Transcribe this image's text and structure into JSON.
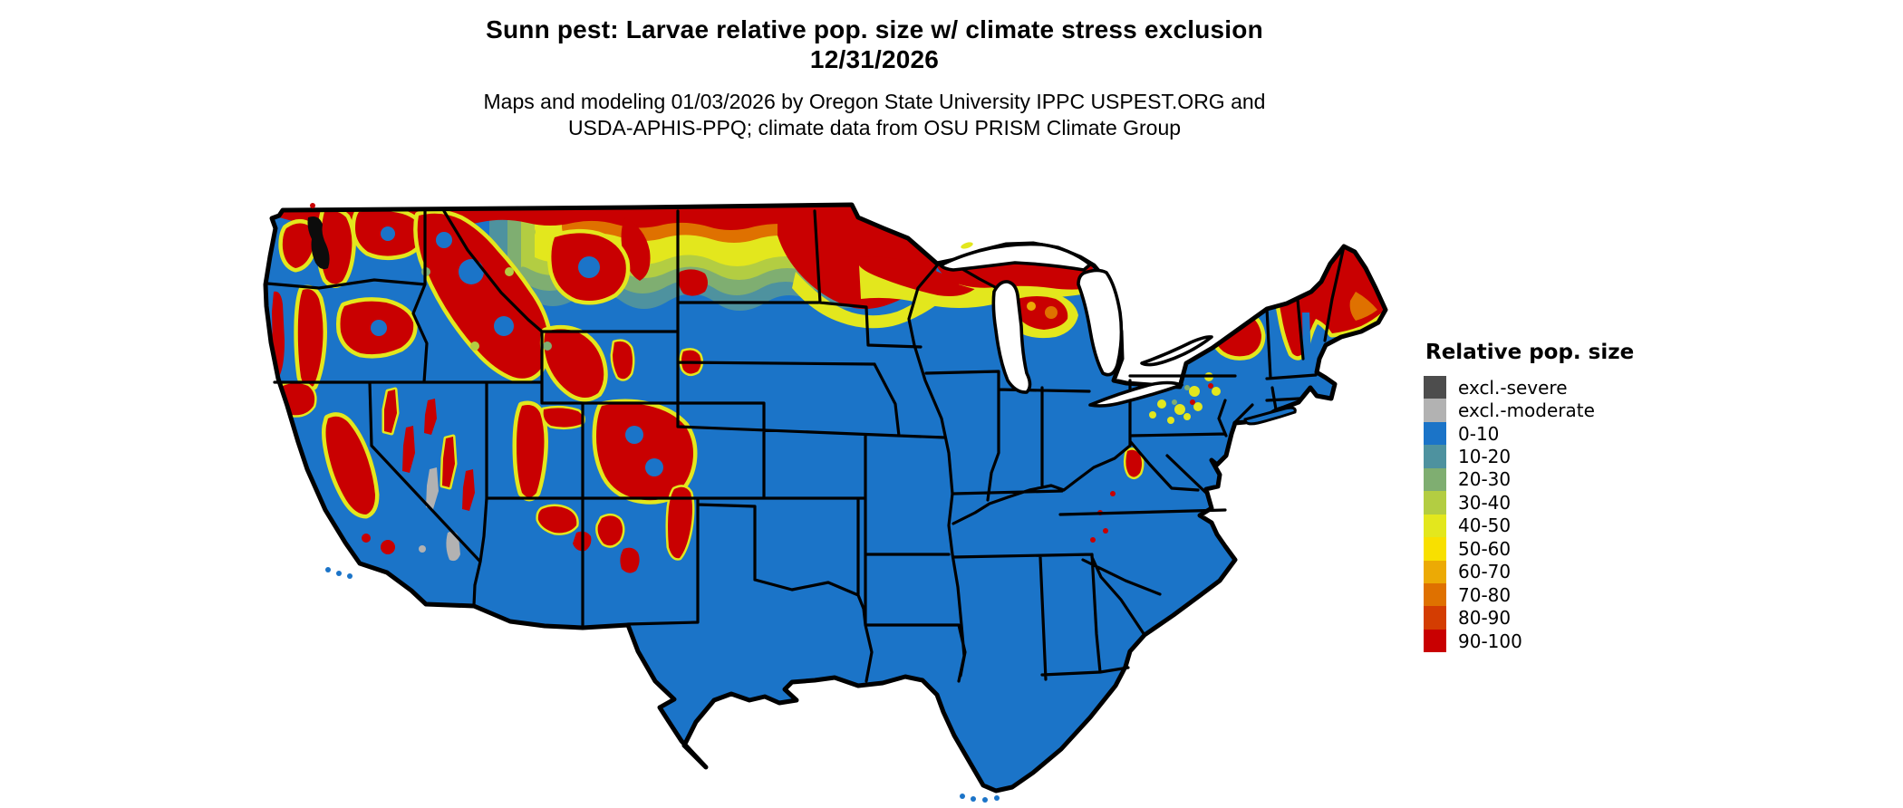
{
  "header": {
    "title_line1": "Sunn pest: Larvae relative pop. size w/ climate stress exclusion",
    "title_line2": "12/31/2026",
    "subtitle_line1": "Maps and modeling 01/03/2026 by Oregon State University IPPC USPEST.ORG and",
    "subtitle_line2": "USDA-APHIS-PPQ; climate data from OSU PRISM Climate Group"
  },
  "map": {
    "region": "Contiguous United States",
    "base_color": "#1b74c8",
    "border_color": "#000000"
  },
  "legend": {
    "title": "Relative pop. size",
    "entries": [
      {
        "label": "excl.-severe",
        "color": "#4d4d4d"
      },
      {
        "label": "excl.-moderate",
        "color": "#b2b2b2"
      },
      {
        "label": "0-10",
        "color": "#1b74c8"
      },
      {
        "label": "10-20",
        "color": "#4e929f"
      },
      {
        "label": "20-30",
        "color": "#7fae71"
      },
      {
        "label": "30-40",
        "color": "#b3cd42"
      },
      {
        "label": "40-50",
        "color": "#e3e71d"
      },
      {
        "label": "50-60",
        "color": "#f8e000"
      },
      {
        "label": "60-70",
        "color": "#ecaa05"
      },
      {
        "label": "70-80",
        "color": "#df7100"
      },
      {
        "label": "80-90",
        "color": "#d43d02"
      },
      {
        "label": "90-100",
        "color": "#c90001"
      }
    ]
  }
}
